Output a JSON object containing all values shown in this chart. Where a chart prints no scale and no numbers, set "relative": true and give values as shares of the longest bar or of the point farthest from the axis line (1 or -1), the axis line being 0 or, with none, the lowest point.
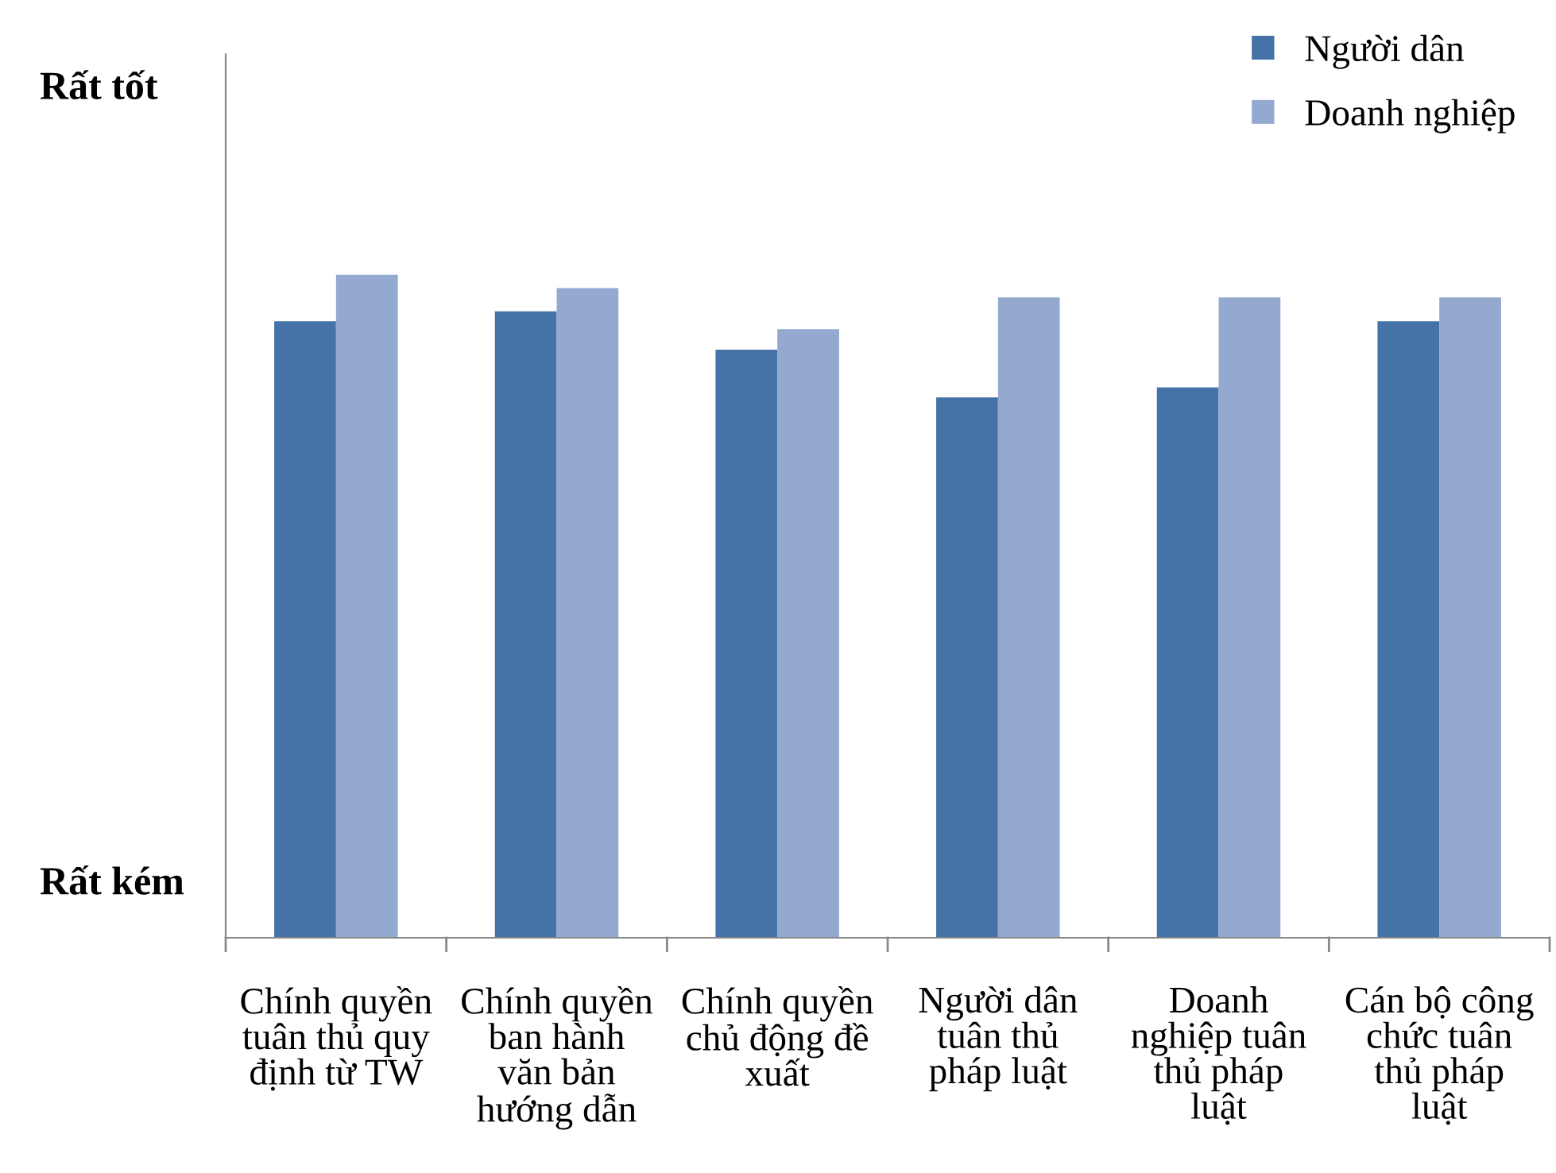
{
  "chart_data": {
    "type": "bar",
    "relative": true,
    "categories": [
      "Chính quyền\ntuân thủ quy\nđịnh từ TW",
      "Chính quyền\nban hành\nvăn bản\nhướng dẫn",
      "Chính quyền\nchủ động đề\nxuất",
      "Người dân\ntuân thủ\npháp luật",
      "Doanh\nnghiệp tuân\nthủ pháp\nluật",
      "Cán bộ công\nchức tuân\nthủ pháp\nluật"
    ],
    "series": [
      {
        "name": "Người dân",
        "color": "#4572a7",
        "values": [
          0.93,
          0.945,
          0.887,
          0.815,
          0.83,
          0.93
        ]
      },
      {
        "name": "Doanh nghiệp",
        "color": "#93a9cf",
        "values": [
          1,
          0.98,
          0.918,
          0.966,
          0.966,
          0.966
        ]
      }
    ],
    "annotations": [
      "Rất tốt",
      "Rất kém"
    ],
    "legend": "top right",
    "grid": false
  }
}
